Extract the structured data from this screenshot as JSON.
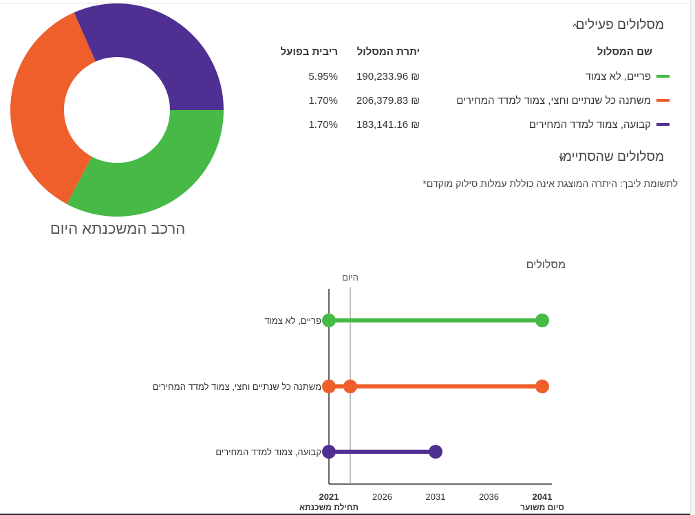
{
  "donut": {
    "caption": "הרכב המשכנתא היום",
    "slices": [
      {
        "name": "פריים, לא צמוד",
        "value": 190233.96,
        "color": "#46b947"
      },
      {
        "name": "משתנה כל שנתיים וחצי, צמוד למדד המחירים",
        "value": 206379.83,
        "color": "#ee5f2b"
      },
      {
        "name": "קבועה, צמוד למדד המחירים",
        "value": 183141.16,
        "color": "#4f2f91"
      }
    ]
  },
  "active": {
    "title": "מסלולים פעילים",
    "chevron": "^",
    "headers": {
      "name": "שם המסלול",
      "balance": "יתרת המסלול",
      "rate": "ריבית בפועל"
    },
    "rows": [
      {
        "name": "פריים, לא צמוד",
        "balance": "190,233.96 ₪",
        "rate": "5.95%",
        "color": "#46b947"
      },
      {
        "name": "משתנה כל שנתיים וחצי, צמוד למדד המחירים",
        "balance": "206,379.83 ₪",
        "rate": "1.70%",
        "color": "#ee5f2b"
      },
      {
        "name": "קבועה, צמוד למדד המחירים",
        "balance": "183,141.16 ₪",
        "rate": "1.70%",
        "color": "#4f2f91"
      }
    ]
  },
  "ended": {
    "title": "מסלולים שהסתיימו",
    "chevron": "v"
  },
  "note": "*לתשומת ליבך: היתרה המוצגת אינה כוללת עמלות סילוק מוקדם",
  "chart_data": {
    "type": "timeline",
    "title": "מסלולים",
    "today_label": "היום",
    "today": 2023,
    "x_range": [
      2021,
      2041
    ],
    "x_ticks": [
      2021,
      2026,
      2031,
      2036,
      2041
    ],
    "x_start_label": "תחילת משכנתא",
    "x_end_label": "סיום משוער",
    "series": [
      {
        "name": "פריים, לא צמוד",
        "color": "#46b947",
        "start": 2021,
        "end": 2041,
        "markers": [
          2021,
          2041
        ]
      },
      {
        "name": "משתנה כל שנתיים וחצי, צמוד למדד המחירים",
        "color": "#ee5f2b",
        "start": 2021,
        "end": 2041,
        "markers": [
          2021,
          2023,
          2041
        ]
      },
      {
        "name": "קבועה, צמוד למדד המחירים",
        "color": "#4f2f91",
        "start": 2021,
        "end": 2031,
        "markers": [
          2021,
          2031
        ]
      }
    ]
  }
}
